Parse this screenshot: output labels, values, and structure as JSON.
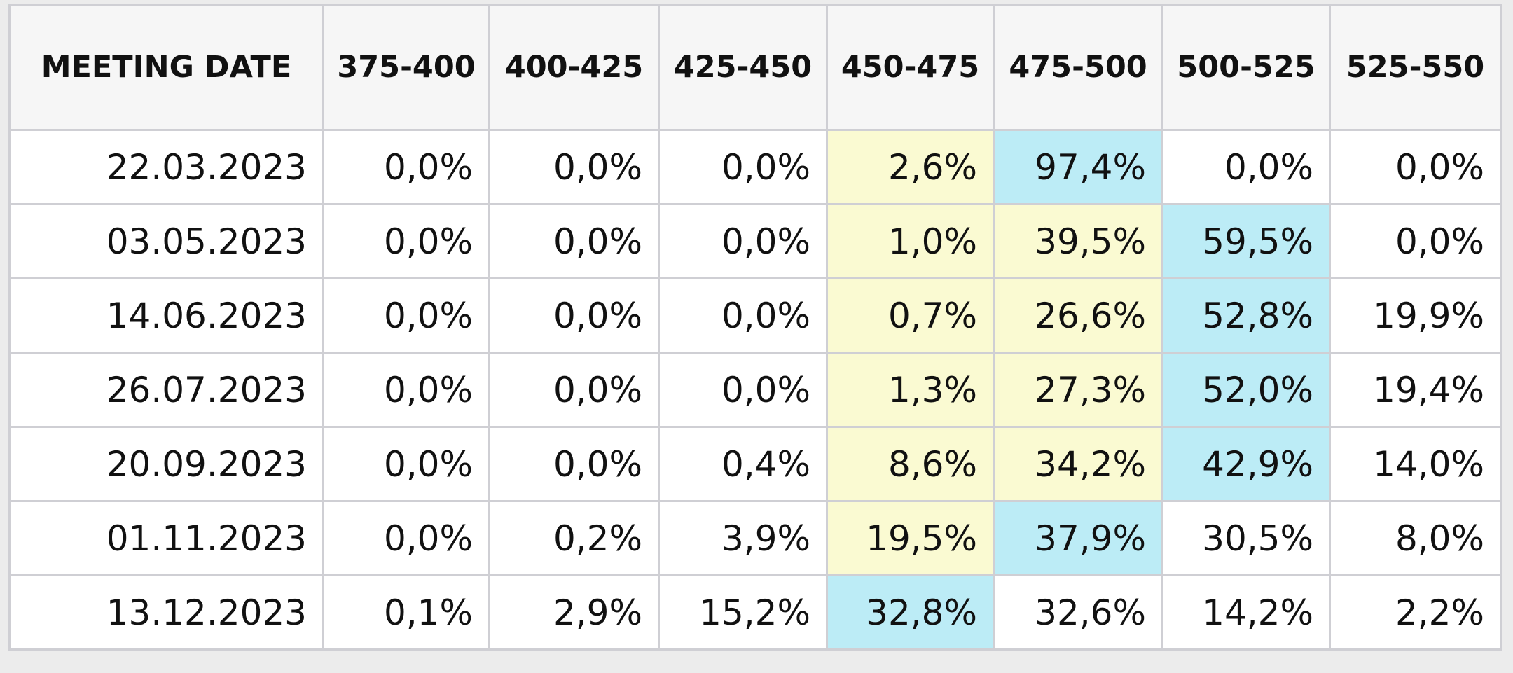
{
  "table": {
    "header": [
      "MEETING DATE",
      "375-400",
      "400-425",
      "425-450",
      "450-475",
      "475-500",
      "500-525",
      "525-550"
    ],
    "rows": [
      [
        "22.03.2023",
        "0,0%",
        "0,0%",
        "0,0%",
        "2,6%",
        "97,4%",
        "0,0%",
        "0,0%"
      ],
      [
        "03.05.2023",
        "0,0%",
        "0,0%",
        "0,0%",
        "1,0%",
        "39,5%",
        "59,5%",
        "0,0%"
      ],
      [
        "14.06.2023",
        "0,0%",
        "0,0%",
        "0,0%",
        "0,7%",
        "26,6%",
        "52,8%",
        "19,9%"
      ],
      [
        "26.07.2023",
        "0,0%",
        "0,0%",
        "0,0%",
        "1,3%",
        "27,3%",
        "52,0%",
        "19,4%"
      ],
      [
        "20.09.2023",
        "0,0%",
        "0,0%",
        "0,4%",
        "8,6%",
        "34,2%",
        "42,9%",
        "14,0%"
      ],
      [
        "01.11.2023",
        "0,0%",
        "0,2%",
        "3,9%",
        "19,5%",
        "37,9%",
        "30,5%",
        "8,0%"
      ],
      [
        "13.12.2023",
        "0,1%",
        "2,9%",
        "15,2%",
        "32,8%",
        "32,6%",
        "14,2%",
        "2,2%"
      ]
    ],
    "cell_colors": [
      [
        "#ffffff",
        "#ffffff",
        "#ffffff",
        "#ffffff",
        "#fafad2",
        "#bcecf6",
        "#ffffff",
        "#ffffff"
      ],
      [
        "#ffffff",
        "#ffffff",
        "#ffffff",
        "#ffffff",
        "#fafad2",
        "#fafad2",
        "#bcecf6",
        "#ffffff"
      ],
      [
        "#ffffff",
        "#ffffff",
        "#ffffff",
        "#ffffff",
        "#fafad2",
        "#fafad2",
        "#bcecf6",
        "#ffffff"
      ],
      [
        "#ffffff",
        "#ffffff",
        "#ffffff",
        "#ffffff",
        "#fafad2",
        "#fafad2",
        "#bcecf6",
        "#ffffff"
      ],
      [
        "#ffffff",
        "#ffffff",
        "#ffffff",
        "#ffffff",
        "#fafad2",
        "#fafad2",
        "#bcecf6",
        "#ffffff"
      ],
      [
        "#ffffff",
        "#ffffff",
        "#ffffff",
        "#ffffff",
        "#fafad2",
        "#bcecf6",
        "#ffffff",
        "#ffffff"
      ],
      [
        "#ffffff",
        "#ffffff",
        "#ffffff",
        "#ffffff",
        "#bcecf6",
        "#ffffff",
        "#ffffff",
        "#ffffff"
      ]
    ]
  }
}
